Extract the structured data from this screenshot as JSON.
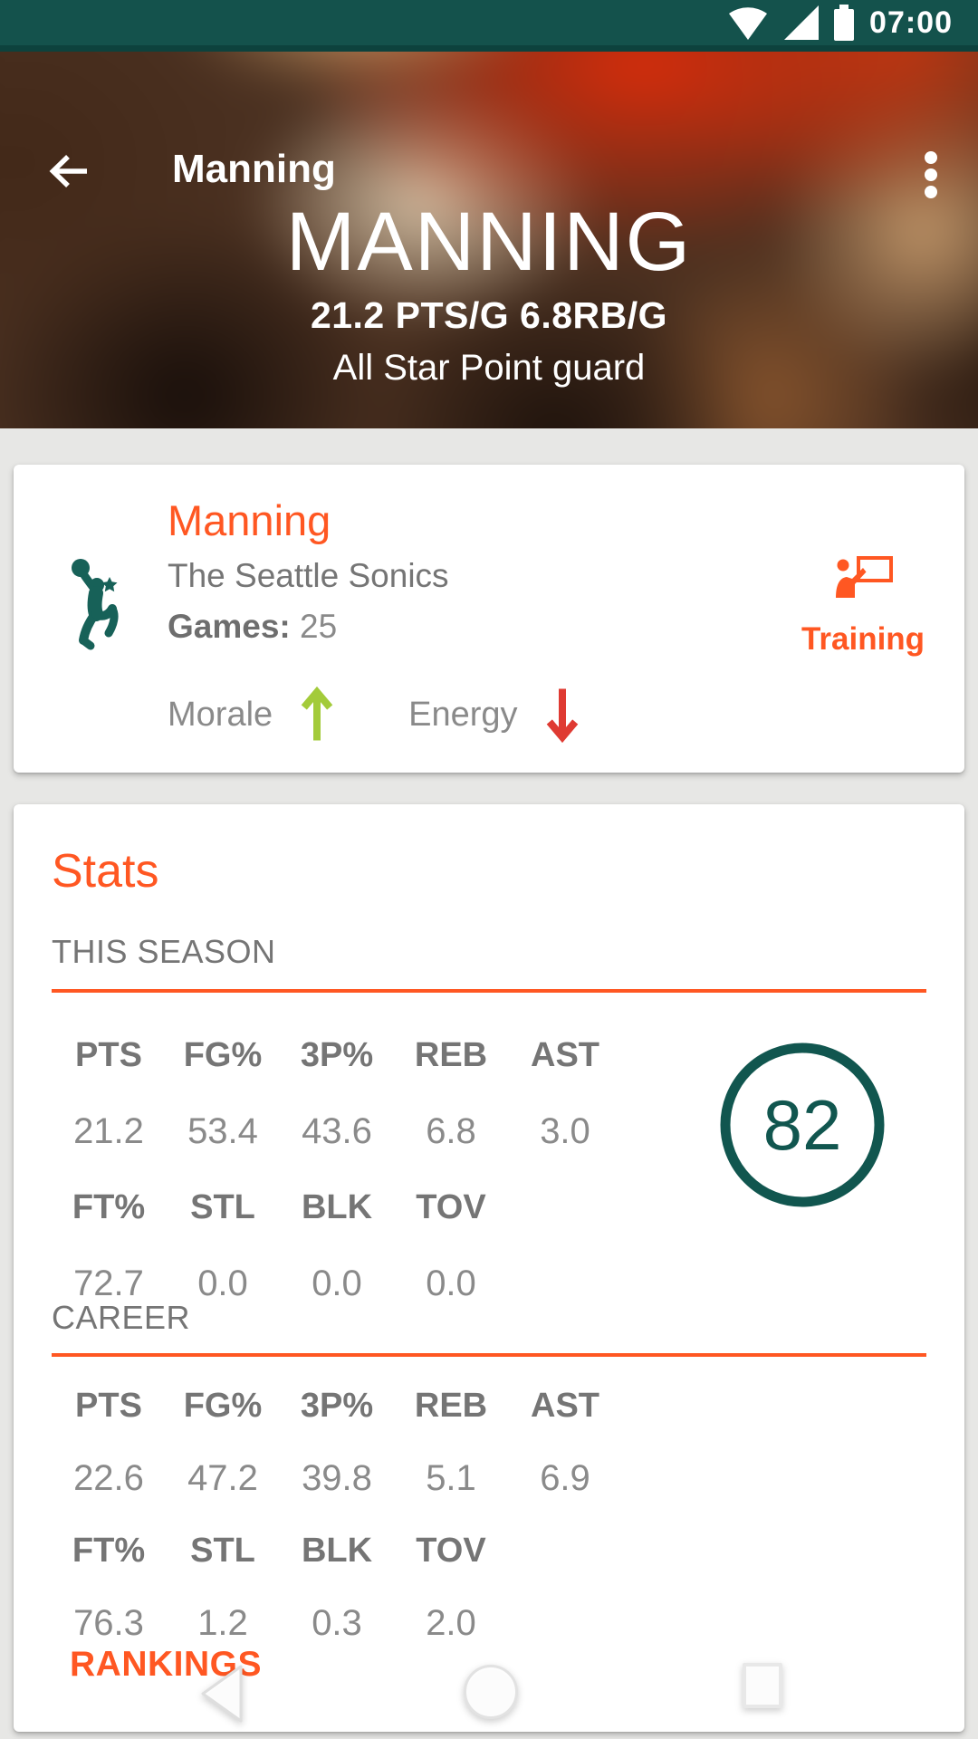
{
  "status_bar": {
    "time": "07:00",
    "icons": [
      "wifi-icon",
      "signal-icon",
      "battery-icon"
    ]
  },
  "app_bar": {
    "title": "Manning",
    "icons": [
      "back-arrow-icon",
      "overflow-menu-icon"
    ]
  },
  "hero": {
    "title": "MANNING",
    "subtitle": "21.2 PTS/G 6.8RB/G",
    "tagline": "All Star Point guard"
  },
  "player_card": {
    "name": "Manning",
    "team": "The Seattle Sonics",
    "games_label": "Games:",
    "games_value": "25",
    "training_label": "Training",
    "morale_label": "Morale",
    "morale_trend": "up",
    "energy_label": "Energy",
    "energy_trend": "down",
    "logo_icon": "dunking-player-star"
  },
  "stats_card": {
    "title": "Stats",
    "rating": "82",
    "sections": [
      {
        "label": "THIS SEASON",
        "rows": [
          {
            "type": "header",
            "cells": [
              "PTS",
              "FG%",
              "3P%",
              "REB",
              "AST"
            ]
          },
          {
            "type": "value",
            "cells": [
              "21.2",
              "53.4",
              "43.6",
              "6.8",
              "3.0"
            ]
          },
          {
            "type": "header",
            "cells": [
              "FT%",
              "STL",
              "BLK",
              "TOV",
              ""
            ]
          },
          {
            "type": "value",
            "cells": [
              "72.7",
              "0.0",
              "0.0",
              "0.0",
              ""
            ]
          }
        ]
      },
      {
        "label": "CAREER",
        "rows": [
          {
            "type": "header",
            "cells": [
              "PTS",
              "FG%",
              "3P%",
              "REB",
              "AST"
            ]
          },
          {
            "type": "value",
            "cells": [
              "22.6",
              "47.2",
              "39.8",
              "5.1",
              "6.9"
            ]
          },
          {
            "type": "header",
            "cells": [
              "FT%",
              "STL",
              "BLK",
              "TOV",
              ""
            ]
          },
          {
            "type": "value",
            "cells": [
              "76.3",
              "1.2",
              "0.3",
              "2.0",
              ""
            ]
          }
        ]
      }
    ],
    "rankings_label": "RANKINGS"
  },
  "nav_bar": {
    "icons": [
      "nav-back-icon",
      "nav-home-icon",
      "nav-recents-icon"
    ]
  },
  "colors": {
    "accent_orange": "#ff5722",
    "status_bar_teal": "#14524c",
    "logo_teal": "#176158",
    "rating_teal": "#11564f",
    "morale_up_green": "#a3cb3a",
    "energy_down_red": "#df3a32",
    "text_gray": "#757575",
    "background_gray": "#e7e7e5"
  }
}
